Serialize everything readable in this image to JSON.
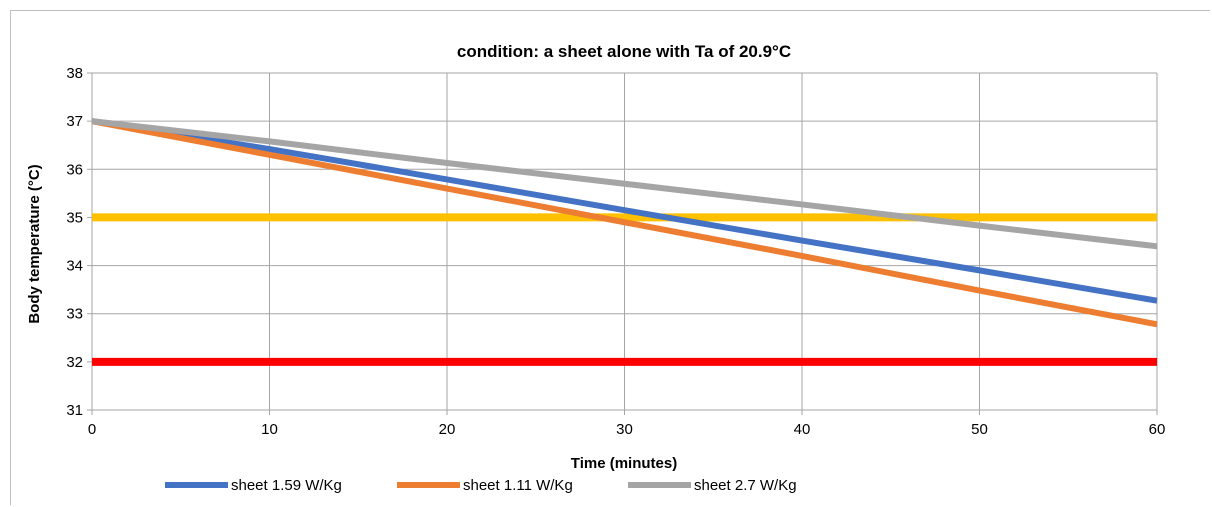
{
  "chart_data": {
    "type": "line",
    "title": "condition: a sheet alone with Ta of 20.9°C",
    "xlabel": "Time (minutes)",
    "ylabel": "Body temperature (°C)",
    "xlim": [
      0,
      60
    ],
    "ylim": [
      31,
      38
    ],
    "xticks": [
      0,
      10,
      20,
      30,
      40,
      50,
      60
    ],
    "yticks": [
      31,
      32,
      33,
      34,
      35,
      36,
      37,
      38
    ],
    "grid": true,
    "legend_position": "bottom",
    "series": [
      {
        "name": "sheet 1.59 W/Kg",
        "color": "#4472C4",
        "x": [
          0,
          10,
          20,
          30,
          40,
          50,
          60
        ],
        "y": [
          37.0,
          36.42,
          35.79,
          35.15,
          34.52,
          33.9,
          33.27
        ]
      },
      {
        "name": "sheet 1.11 W/Kg",
        "color": "#ED7D31",
        "x": [
          0,
          10,
          20,
          30,
          40,
          50,
          60
        ],
        "y": [
          37.0,
          36.3,
          35.6,
          34.9,
          34.2,
          33.48,
          32.78
        ]
      },
      {
        "name": "sheet  2.7 W/Kg",
        "color": "#A5A5A5",
        "x": [
          0,
          10,
          20,
          30,
          40,
          50,
          60
        ],
        "y": [
          37.0,
          36.58,
          36.13,
          35.7,
          35.27,
          34.83,
          34.4
        ]
      }
    ],
    "reference_lines": [
      {
        "y": 35,
        "color": "#FFC000"
      },
      {
        "y": 32,
        "color": "#FF0000"
      }
    ]
  }
}
